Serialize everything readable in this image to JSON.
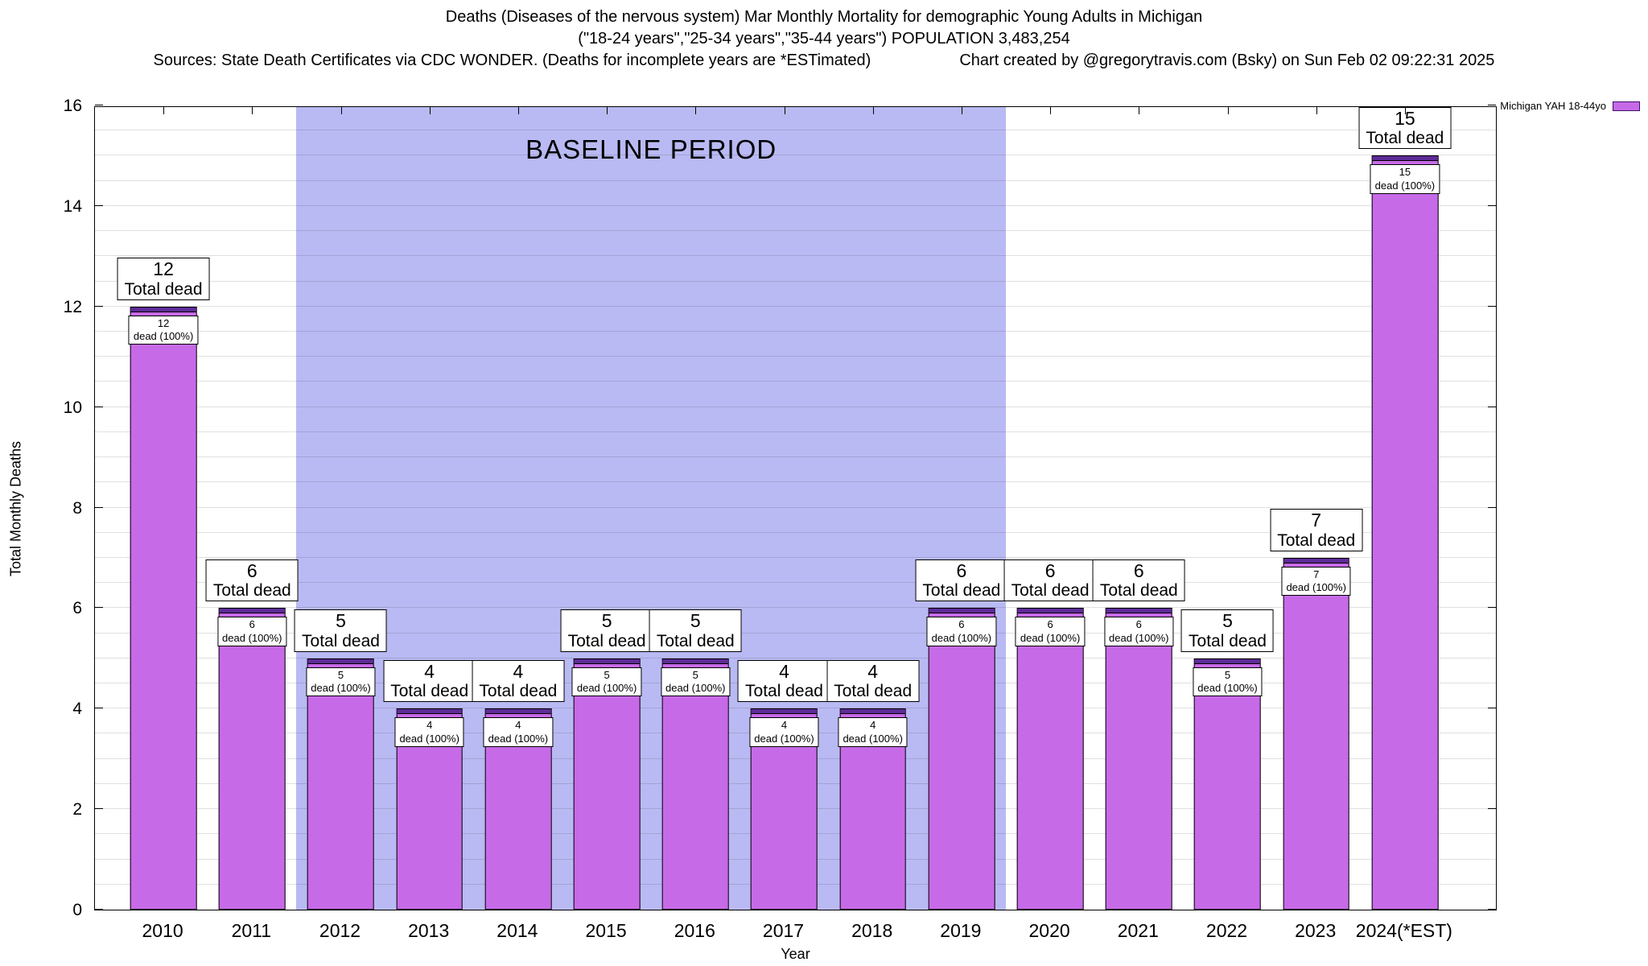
{
  "title": {
    "line1": "Deaths (Diseases of the nervous system) Mar Monthly Mortality for demographic Young Adults in Michigan",
    "line2": "(\"18-24 years\",\"25-34 years\",\"35-44 years\") POPULATION 3,483,254",
    "line3_left": "Sources: State Death Certificates via CDC WONDER. (Deaths for incomplete years are *ESTimated)",
    "line3_right": "Chart created by @gregorytravis.com (Bsky) on Sun Feb 02 09:22:31 2025"
  },
  "legend": {
    "label": "Michigan YAH 18-44yo"
  },
  "baseline": {
    "label": "BASELINE PERIOD",
    "start_index": 2,
    "end_index": 9,
    "color": "#b9baf3"
  },
  "axes": {
    "ylabel": "Total Monthly Deaths",
    "xlabel": "Year",
    "ymin": 0,
    "ymax": 16,
    "ytick_step": 2,
    "minor_step": 0.5
  },
  "colors": {
    "bar_fill": "#c76ae8",
    "bar_cap": "#5e2b97",
    "region": "#b9baf3"
  },
  "chart_data": {
    "type": "bar",
    "title": "Deaths (Diseases of the nervous system) Mar Monthly Mortality for demographic Young Adults in Michigan",
    "categories": [
      "2010",
      "2011",
      "2012",
      "2013",
      "2014",
      "2015",
      "2016",
      "2017",
      "2018",
      "2019",
      "2020",
      "2021",
      "2022",
      "2023",
      "2024(*EST)"
    ],
    "values": [
      12,
      6,
      5,
      4,
      4,
      5,
      5,
      4,
      4,
      6,
      6,
      6,
      5,
      7,
      15
    ],
    "series_name": "Michigan YAH 18-44yo",
    "total_label": "Total dead",
    "inner_label": "dead (100%)",
    "xlabel": "Year",
    "ylabel": "Total Monthly Deaths",
    "ylim": [
      0,
      16
    ],
    "grid": true,
    "legend_position": "top-right",
    "baseline_period": [
      "2012",
      "2019"
    ],
    "baseline_label": "BASELINE PERIOD"
  }
}
